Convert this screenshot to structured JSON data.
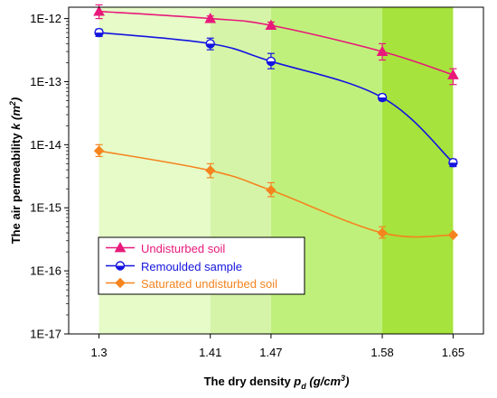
{
  "chart_data": {
    "type": "line",
    "xlabel": {
      "main": "The dry density ",
      "symbol": "p",
      "subscript": "d",
      "unit_open": " (g/cm",
      "unit_power": "3",
      "unit_close": ")"
    },
    "ylabel": {
      "main": "The air permeability ",
      "symbol": "k",
      "unit_open": " (m",
      "unit_power": "2",
      "unit_close": ")"
    },
    "x_ticks": [
      "1.3",
      "1.41",
      "1.47",
      "1.58",
      "1.65"
    ],
    "y_ticks": [
      "1E-17",
      "1E-16",
      "1E-15",
      "1E-14",
      "1E-13",
      "1E-12"
    ],
    "x_range": [
      1.27,
      1.68
    ],
    "y_log_range": [
      -17,
      -11.82
    ],
    "y_scale": "log",
    "legend_position": "bottom-left",
    "background_bands": [
      {
        "from": 1.3,
        "to": 1.41,
        "color": "#e6fbc8"
      },
      {
        "from": 1.41,
        "to": 1.47,
        "color": "#d5f4a8"
      },
      {
        "from": 1.47,
        "to": 1.58,
        "color": "#bff07c"
      },
      {
        "from": 1.58,
        "to": 1.65,
        "color": "#a6e33c"
      }
    ],
    "series": [
      {
        "name": "Undisturbed soil",
        "color": "#e8197a",
        "marker": "triangle",
        "points": [
          {
            "x": 1.3,
            "y": 1.3e-12,
            "err_low": 1e-12,
            "err_high": 1.65e-12
          },
          {
            "x": 1.41,
            "y": 1e-12,
            "err_low": 9e-13,
            "err_high": 1.1e-12
          },
          {
            "x": 1.47,
            "y": 7.8e-13,
            "err_low": 6.8e-13,
            "err_high": 8.8e-13
          },
          {
            "x": 1.58,
            "y": 3e-13,
            "err_low": 2.2e-13,
            "err_high": 4e-13
          },
          {
            "x": 1.65,
            "y": 1.28e-13,
            "err_low": 9e-14,
            "err_high": 1.6e-13
          }
        ]
      },
      {
        "name": "Remoulded sample",
        "color": "#1414e0",
        "marker": "half-circle",
        "points": [
          {
            "x": 1.3,
            "y": 6e-13,
            "err_low": 5.2e-13,
            "err_high": 6.8e-13
          },
          {
            "x": 1.41,
            "y": 4e-13,
            "err_low": 3.2e-13,
            "err_high": 4.9e-13
          },
          {
            "x": 1.47,
            "y": 2.1e-13,
            "err_low": 1.6e-13,
            "err_high": 2.8e-13
          },
          {
            "x": 1.58,
            "y": 5.6e-14,
            "err_low": 5e-14,
            "err_high": 6.3e-14
          },
          {
            "x": 1.65,
            "y": 5.2e-15,
            "err_low": 4.5e-15,
            "err_high": 5.9e-15
          }
        ]
      },
      {
        "name": "Saturated undisturbed soil",
        "color": "#f5841f",
        "marker": "diamond",
        "points": [
          {
            "x": 1.3,
            "y": 8e-15,
            "err_low": 6.5e-15,
            "err_high": 1e-14
          },
          {
            "x": 1.41,
            "y": 3.9e-15,
            "err_low": 3e-15,
            "err_high": 5e-15
          },
          {
            "x": 1.47,
            "y": 1.9e-15,
            "err_low": 1.5e-15,
            "err_high": 2.5e-15
          },
          {
            "x": 1.58,
            "y": 4e-16,
            "err_low": 3.3e-16,
            "err_high": 5e-16
          },
          {
            "x": 1.65,
            "y": 3.7e-16,
            "err_low": 3.6e-16,
            "err_high": 3.8e-16
          }
        ]
      }
    ]
  }
}
